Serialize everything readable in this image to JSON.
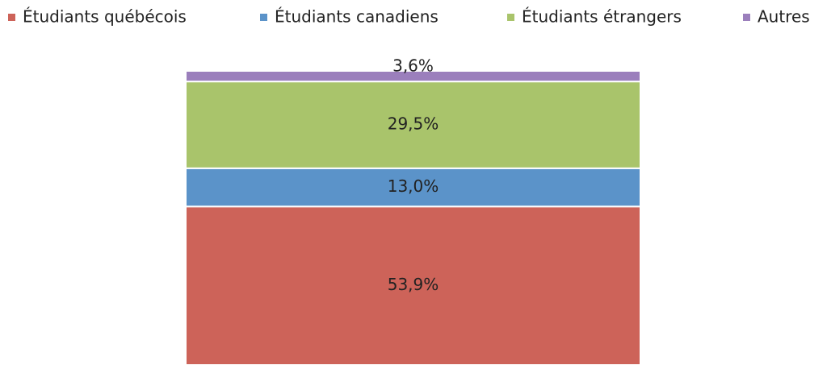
{
  "chart_data": {
    "type": "stacked_bar",
    "categories": [
      null
    ],
    "series": [
      {
        "name": "Étudiants québécois",
        "color": "#cd6359",
        "values": [
          53.9
        ],
        "value_labels": [
          "53,9%"
        ]
      },
      {
        "name": "Étudiants canadiens",
        "color": "#5b93c9",
        "values": [
          13.0
        ],
        "value_labels": [
          "13,0%"
        ]
      },
      {
        "name": "Étudiants étrangers",
        "color": "#a9c46b",
        "values": [
          29.5
        ],
        "value_labels": [
          "29,5%"
        ]
      },
      {
        "name": "Autres",
        "color": "#9b7fbc",
        "values": [
          3.6
        ],
        "value_labels": [
          "3,6%"
        ]
      }
    ],
    "legend": "top"
  }
}
